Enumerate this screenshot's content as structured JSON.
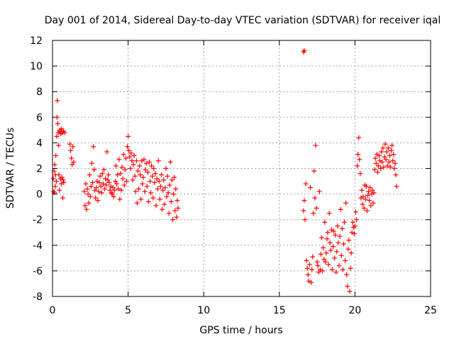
{
  "chart_data": {
    "type": "scatter",
    "title": "Day 001 of 2014, Sidereal Day-to-day VTEC variation (SDTVAR) for receiver iqal",
    "xlabel": "GPS time / hours",
    "ylabel": "SDTVAR / TECUs",
    "xlim": [
      0,
      25
    ],
    "ylim": [
      -8,
      12
    ],
    "xticks": [
      0,
      5,
      10,
      15,
      20,
      25
    ],
    "yticks": [
      -8,
      -6,
      -4,
      -2,
      0,
      2,
      4,
      6,
      8,
      10,
      12
    ],
    "grid": true,
    "marker": "+",
    "series": [
      {
        "name": "SDTVAR",
        "color": "#ff0000",
        "x": [
          0.05,
          0.08,
          0.1,
          0.12,
          0.15,
          0.18,
          0.2,
          0.22,
          0.25,
          0.28,
          0.3,
          0.32,
          0.35,
          0.38,
          0.4,
          0.42,
          0.45,
          0.48,
          0.5,
          0.52,
          0.55,
          0.58,
          0.6,
          0.62,
          0.65,
          0.68,
          0.7,
          0.72,
          0.75,
          0.8,
          1.15,
          1.2,
          1.25,
          1.3,
          1.35,
          1.4,
          2.1,
          2.15,
          2.2,
          2.25,
          2.3,
          2.35,
          2.4,
          2.45,
          2.5,
          2.55,
          2.6,
          2.65,
          2.7,
          2.75,
          2.8,
          2.85,
          2.9,
          2.95,
          3.0,
          3.05,
          3.1,
          3.15,
          3.2,
          3.25,
          3.3,
          3.35,
          3.4,
          3.45,
          3.5,
          3.55,
          3.6,
          3.65,
          3.7,
          3.75,
          3.8,
          3.85,
          3.9,
          3.95,
          4.0,
          4.05,
          4.1,
          4.15,
          4.2,
          4.25,
          4.3,
          4.35,
          4.4,
          4.45,
          4.5,
          4.55,
          4.6,
          4.65,
          4.7,
          4.75,
          4.8,
          4.85,
          4.9,
          4.95,
          5.0,
          5.05,
          5.1,
          5.15,
          5.2,
          5.25,
          5.3,
          5.35,
          5.4,
          5.45,
          5.5,
          5.55,
          5.6,
          5.65,
          5.7,
          5.75,
          5.8,
          5.85,
          5.9,
          5.95,
          6.0,
          6.05,
          6.1,
          6.15,
          6.2,
          6.25,
          6.3,
          6.35,
          6.4,
          6.45,
          6.5,
          6.55,
          6.6,
          6.65,
          6.7,
          6.75,
          6.8,
          6.85,
          6.9,
          6.95,
          7.0,
          7.05,
          7.1,
          7.15,
          7.2,
          7.25,
          7.3,
          7.35,
          7.4,
          7.45,
          7.5,
          7.55,
          7.6,
          7.65,
          7.7,
          7.75,
          7.8,
          7.85,
          7.9,
          7.95,
          8.0,
          8.05,
          8.1,
          8.15,
          8.2,
          8.25,
          8.3,
          16.6,
          16.65,
          16.6,
          16.65,
          16.7,
          16.75,
          16.8,
          16.85,
          16.9,
          16.95,
          17.0,
          17.05,
          17.1,
          17.15,
          17.2,
          17.25,
          17.3,
          17.35,
          17.4,
          17.45,
          17.5,
          17.55,
          17.6,
          17.65,
          17.7,
          17.75,
          17.8,
          17.85,
          17.9,
          17.95,
          18.0,
          18.05,
          18.1,
          18.15,
          18.2,
          18.25,
          18.3,
          18.35,
          18.4,
          18.45,
          18.5,
          18.55,
          18.6,
          18.65,
          18.7,
          18.75,
          18.8,
          18.85,
          18.9,
          18.95,
          19.0,
          19.05,
          19.1,
          19.15,
          19.2,
          19.25,
          19.3,
          19.35,
          19.4,
          19.45,
          19.5,
          19.55,
          19.6,
          19.65,
          19.7,
          19.75,
          19.8,
          19.85,
          19.9,
          19.95,
          20.0,
          20.05,
          20.1,
          20.15,
          20.2,
          20.25,
          20.3,
          20.35,
          20.4,
          20.45,
          20.5,
          20.55,
          20.6,
          20.65,
          20.7,
          20.75,
          20.8,
          20.85,
          20.9,
          20.95,
          21.0,
          21.05,
          21.1,
          21.15,
          21.2,
          21.25,
          21.3,
          21.35,
          21.4,
          21.45,
          21.5,
          21.55,
          21.6,
          21.65,
          21.7,
          21.75,
          21.8,
          21.85,
          21.9,
          21.95,
          22.0,
          22.05,
          22.1,
          22.15,
          22.2,
          22.25,
          22.3,
          22.35,
          22.4,
          22.45,
          22.5,
          22.55,
          22.6,
          22.65,
          22.7,
          22.75
        ],
        "y": [
          1.2,
          0.2,
          1.8,
          0.1,
          2.3,
          0.6,
          1.5,
          3.0,
          1.0,
          4.5,
          6.0,
          7.3,
          5.5,
          4.8,
          3.8,
          1.5,
          0.3,
          5.0,
          4.9,
          1.2,
          4.7,
          0.8,
          5.1,
          1.3,
          4.8,
          -0.3,
          1.1,
          4.9,
          0.9,
          4.8,
          3.9,
          3.4,
          2.8,
          2.3,
          3.7,
          2.5,
          0.2,
          -0.9,
          0.8,
          -1.2,
          0.4,
          0.0,
          -0.7,
          1.5,
          -0.2,
          0.6,
          2.4,
          0.9,
          3.7,
          1.9,
          0.3,
          -0.3,
          0.5,
          1.0,
          -0.5,
          0.2,
          0.9,
          1.4,
          0.6,
          0.1,
          1.6,
          0.8,
          1.9,
          0.4,
          1.2,
          0.7,
          3.3,
          1.1,
          1.5,
          0.9,
          0.3,
          0.6,
          0.1,
          0.0,
          0.5,
          -0.2,
          0.3,
          1.0,
          2.2,
          0.8,
          1.5,
          0.4,
          2.7,
          -0.4,
          1.6,
          0.3,
          2.1,
          1.2,
          3.1,
          0.7,
          1.9,
          2.8,
          1.0,
          3.7,
          4.5,
          3.4,
          2.9,
          2.0,
          3.2,
          2.6,
          1.1,
          2.3,
          3.0,
          1.4,
          0.2,
          2.6,
          -0.7,
          1.8,
          0.4,
          2.2,
          1.5,
          -0.4,
          2.6,
          0.8,
          1.3,
          2.7,
          0.2,
          1.9,
          2.4,
          0.6,
          1.7,
          -0.6,
          2.5,
          1.0,
          0.1,
          2.2,
          1.4,
          -0.3,
          2.0,
          0.9,
          1.6,
          -0.9,
          1.2,
          0.4,
          2.6,
          1.0,
          -0.4,
          0.6,
          1.5,
          -1.2,
          0.3,
          1.1,
          -0.8,
          0.5,
          2.0,
          -0.2,
          1.4,
          0.1,
          -1.5,
          0.7,
          2.5,
          -0.6,
          1.1,
          -2.0,
          0.0,
          1.3,
          -1.3,
          0.4,
          -1.8,
          -0.5,
          -1.1,
          11.1,
          11.2,
          -1.3,
          -0.5,
          -2.0,
          0.8,
          -5.2,
          -5.8,
          -6.3,
          -6.8,
          -5.5,
          0.5,
          -6.9,
          -5.9,
          -4.9,
          -1.5,
          1.8,
          -0.3,
          3.8,
          -1.1,
          -5.3,
          -5.6,
          -6.1,
          0.2,
          -5.9,
          -4.7,
          -3.4,
          -6.0,
          -4.2,
          -5.1,
          -2.2,
          -5.3,
          -4.6,
          -3.5,
          -3.0,
          -5.5,
          -1.5,
          -3.8,
          -4.4,
          -2.8,
          -5.9,
          -4.1,
          -2.9,
          -5.0,
          -3.2,
          -6.1,
          -4.5,
          -2.5,
          -3.8,
          -5.6,
          -3.3,
          -1.2,
          -4.8,
          -2.7,
          -5.9,
          -3.9,
          -2.2,
          -5.2,
          -0.7,
          -6.3,
          -7.2,
          -4.3,
          -3.6,
          -7.6,
          -5.8,
          -4.6,
          -3.0,
          -2.2,
          -2.6,
          -3.1,
          -2.5,
          -1.4,
          -2.0,
          2.2,
          3.1,
          4.4,
          2.7,
          1.6,
          -0.3,
          0.3,
          -0.8,
          -0.2,
          -1.1,
          0.7,
          -0.4,
          0.6,
          -1.3,
          -0.1,
          0.2,
          -0.5,
          0.5,
          -0.9,
          0.0,
          0.3,
          -0.7,
          0.1,
          1.9,
          2.8,
          2.4,
          3.1,
          1.7,
          2.2,
          3.0,
          2.6,
          2.0,
          3.3,
          2.5,
          3.6,
          2.1,
          2.9,
          3.9,
          2.7,
          3.3,
          2.2,
          3.6,
          2.5,
          3.0,
          2.1,
          3.4,
          3.8,
          2.6,
          3.1,
          2.0,
          2.4,
          1.5,
          0.6
        ]
      }
    ]
  }
}
